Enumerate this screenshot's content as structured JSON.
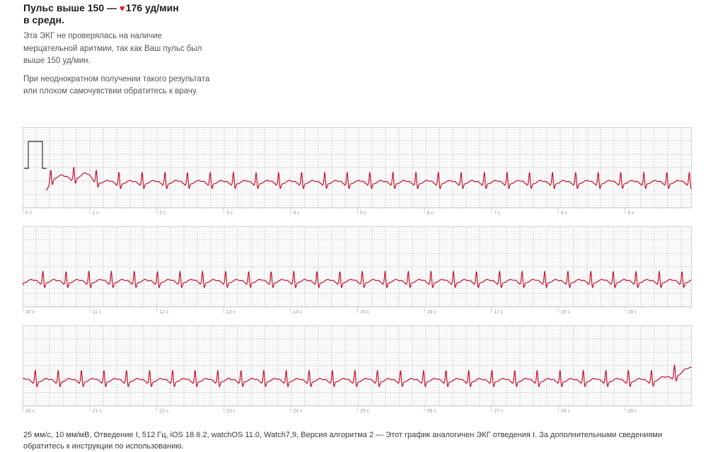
{
  "header": {
    "title_prefix": "Пульс выше 150 — ",
    "heart_icon": "heart-icon",
    "title_value": "176 уд/мин",
    "title_suffix": "в средн.",
    "paragraph1": "Эта ЭКГ не проверялась на наличие мерцательной аритмии, так как Ваш пульс был выше 150 уд/мин.",
    "paragraph2": "При неоднократном получении такого результата или плохом самочувствии обратитесь к врачу."
  },
  "colors": {
    "grid_major": "#cfcfcf",
    "grid_minor": "#ececec",
    "trace": "#c8102e",
    "calibration": "#333333",
    "heart": "#e0192c"
  },
  "ecg": {
    "heart_rate_bpm": 176,
    "seconds_per_strip": 10,
    "strips": [
      {
        "labels": [
          "0 с",
          "1 с",
          "2 с",
          "3 с",
          "4 с",
          "5 с",
          "6 с",
          "7 с",
          "8 с",
          "9 с"
        ]
      },
      {
        "labels": [
          "10 с",
          "11 с",
          "12 с",
          "13 с",
          "14 с",
          "15 с",
          "16 с",
          "17 с",
          "18 с",
          "19 с"
        ]
      },
      {
        "labels": [
          "20 с",
          "21 с",
          "22 с",
          "23 с",
          "24 с",
          "25 с",
          "26 с",
          "27 с",
          "28 с",
          "29 с"
        ]
      }
    ]
  },
  "footer": {
    "text": "25 мм/с, 10 мм/мВ, Отведение I, 512 Гц, iOS 18.6.2, watchOS 11.0, Watch7,9, Версия алгоритма 2 — Этот график аналогичен ЭКГ отведения I. За дополнительными сведениями обратитесь к инструкции по использованию."
  }
}
